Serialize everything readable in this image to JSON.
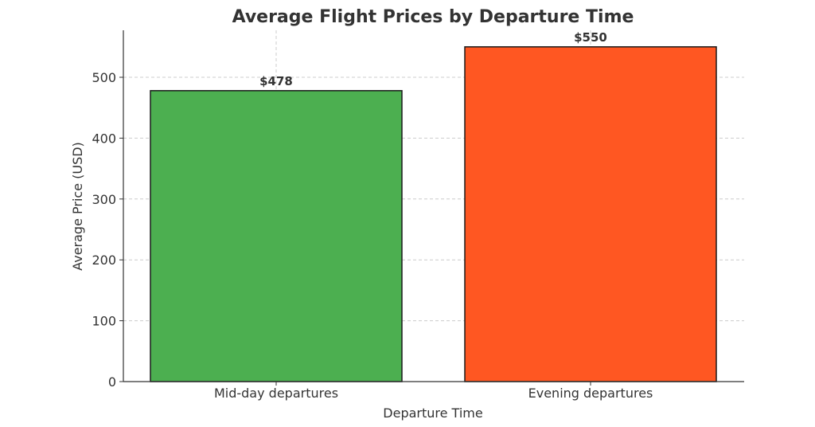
{
  "chart_data": {
    "type": "bar",
    "title": "Average Flight Prices by Departure Time",
    "xlabel": "Departure Time",
    "ylabel": "Average Price (USD)",
    "categories": [
      "Mid-day departures",
      "Evening departures"
    ],
    "values": [
      478,
      550
    ],
    "data_labels": [
      "$478",
      "$550"
    ],
    "colors": [
      "#4caf50",
      "#ff5722"
    ],
    "ylim": [
      0,
      577.5
    ],
    "yticks": [
      0,
      100,
      200,
      300,
      400,
      500
    ],
    "grid": true,
    "grid_style": "dashed"
  }
}
